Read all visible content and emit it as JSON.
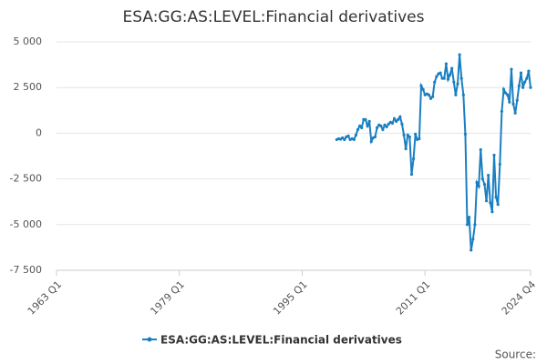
{
  "chart_data": {
    "type": "line",
    "title": "ESA:GG:AS:LEVEL:Financial derivatives",
    "source_label": "Source:",
    "x": [
      "1999 Q3",
      "1999 Q4",
      "2000 Q1",
      "2000 Q2",
      "2000 Q3",
      "2000 Q4",
      "2001 Q1",
      "2001 Q2",
      "2001 Q3",
      "2001 Q4",
      "2002 Q1",
      "2002 Q2",
      "2002 Q3",
      "2002 Q4",
      "2003 Q1",
      "2003 Q2",
      "2003 Q3",
      "2003 Q4",
      "2004 Q1",
      "2004 Q2",
      "2004 Q3",
      "2004 Q4",
      "2005 Q1",
      "2005 Q2",
      "2005 Q3",
      "2005 Q4",
      "2006 Q1",
      "2006 Q2",
      "2006 Q3",
      "2006 Q4",
      "2007 Q1",
      "2007 Q2",
      "2007 Q3",
      "2007 Q4",
      "2008 Q1",
      "2008 Q2",
      "2008 Q3",
      "2008 Q4",
      "2009 Q1",
      "2009 Q2",
      "2009 Q3",
      "2009 Q4",
      "2010 Q1",
      "2010 Q2",
      "2010 Q3",
      "2010 Q4",
      "2011 Q1",
      "2011 Q2",
      "2011 Q3",
      "2011 Q4",
      "2012 Q1",
      "2012 Q2",
      "2012 Q3",
      "2012 Q4",
      "2013 Q1",
      "2013 Q2",
      "2013 Q3",
      "2013 Q4",
      "2014 Q1",
      "2014 Q2",
      "2014 Q3",
      "2014 Q4",
      "2015 Q1",
      "2015 Q2",
      "2015 Q3",
      "2015 Q4",
      "2016 Q1",
      "2016 Q2",
      "2016 Q3",
      "2016 Q4",
      "2017 Q1",
      "2017 Q2",
      "2017 Q3",
      "2017 Q4",
      "2018 Q1",
      "2018 Q2",
      "2018 Q3",
      "2018 Q4",
      "2019 Q1",
      "2019 Q2",
      "2019 Q3",
      "2019 Q4",
      "2020 Q1",
      "2020 Q2",
      "2020 Q3",
      "2020 Q4",
      "2021 Q1",
      "2021 Q2",
      "2021 Q3",
      "2021 Q4",
      "2022 Q1",
      "2022 Q2",
      "2022 Q3",
      "2022 Q4",
      "2023 Q1",
      "2023 Q2",
      "2023 Q3",
      "2023 Q4",
      "2024 Q1",
      "2024 Q2",
      "2024 Q3",
      "2024 Q4"
    ],
    "series": [
      {
        "name": "ESA:GG:AS:LEVEL:Financial derivatives",
        "color": "#1a7fc1",
        "values": [
          -350,
          -300,
          -330,
          -250,
          -350,
          -200,
          -150,
          -350,
          -300,
          -350,
          -100,
          200,
          400,
          300,
          750,
          750,
          400,
          650,
          -450,
          -250,
          -200,
          300,
          450,
          400,
          200,
          450,
          350,
          500,
          600,
          550,
          800,
          650,
          750,
          900,
          500,
          -100,
          -850,
          -100,
          -200,
          -2250,
          -1400,
          -50,
          -350,
          -300,
          2600,
          2400,
          2100,
          2150,
          2100,
          1900,
          2000,
          2800,
          3100,
          3250,
          3300,
          3000,
          3000,
          3800,
          2950,
          3200,
          3550,
          2800,
          2100,
          2700,
          4300,
          3000,
          2100,
          -50,
          -5000,
          -4600,
          -6400,
          -5800,
          -5000,
          -2700,
          -2900,
          -900,
          -2500,
          -2800,
          -3700,
          -2300,
          -3800,
          -4300,
          -1200,
          -3500,
          -3900,
          -1700,
          1200,
          2400,
          2200,
          2100,
          1700,
          3500,
          1600,
          1100,
          1800,
          2600,
          3300,
          2500,
          2800,
          3000,
          3400,
          2500
        ]
      }
    ],
    "xlim": [
      "1963 Q1",
      "2024 Q4"
    ],
    "xticks": [
      "1963 Q1",
      "1979 Q1",
      "1995 Q1",
      "2011 Q1",
      "2024 Q4"
    ],
    "ylim": [
      -7500,
      5000
    ],
    "yticks": [
      {
        "value": -7500,
        "label": "-7 500"
      },
      {
        "value": -5000,
        "label": "-5 000"
      },
      {
        "value": -2500,
        "label": "-2 500"
      },
      0,
      {
        "value": 2500,
        "label": "2 500"
      },
      {
        "value": 5000,
        "label": "5 000"
      }
    ],
    "grid": true
  }
}
